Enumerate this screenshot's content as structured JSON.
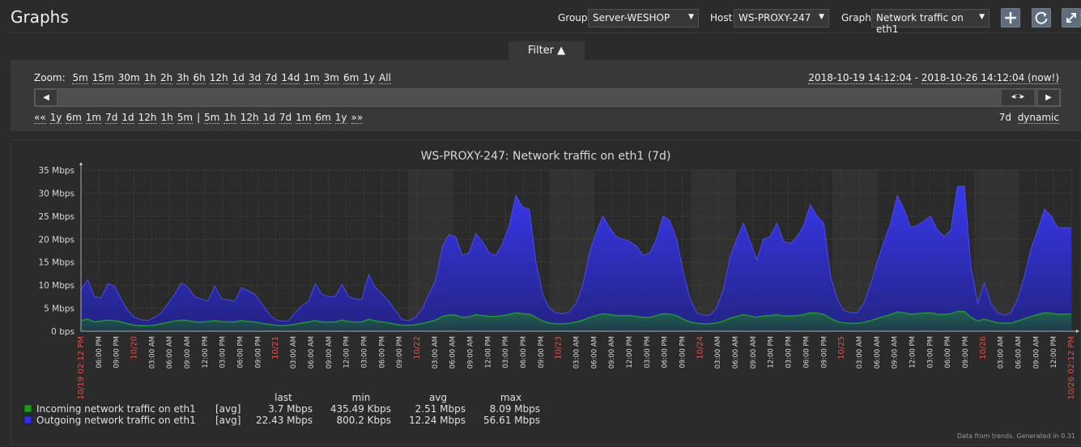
{
  "header": {
    "title": "Graphs",
    "group_label": "Group",
    "group_value": "Server-WESHOP",
    "host_label": "Host",
    "host_value": "WS-PROXY-247",
    "graph_label": "Graph",
    "graph_value": "Network traffic on eth1",
    "icons": [
      "plus-icon",
      "refresh-icon",
      "fullscreen-icon"
    ]
  },
  "filter": {
    "tab_label": "Filter ▲",
    "zoom_label": "Zoom:",
    "zoom_options": [
      "5m",
      "15m",
      "30m",
      "1h",
      "2h",
      "3h",
      "6h",
      "12h",
      "1d",
      "3d",
      "7d",
      "14d",
      "1m",
      "3m",
      "6m",
      "1y",
      "All"
    ],
    "range_from": "2018-10-19 14:12:04",
    "range_sep": " - ",
    "range_to": "2018-10-26 14:12:04 (now!)",
    "nav_back_all": "««",
    "nav_back": [
      "1y",
      "6m",
      "1m",
      "7d",
      "1d",
      "12h",
      "1h",
      "5m"
    ],
    "nav_sep": "|",
    "nav_fwd": [
      "5m",
      "1h",
      "12h",
      "1d",
      "7d",
      "1m",
      "6m",
      "1y"
    ],
    "nav_fwd_all": "»»",
    "period": "7d",
    "mode": "dynamic"
  },
  "graph": {
    "footer_note": "Data from trends. Generated in 0.31",
    "legend_headers": [
      "last",
      "min",
      "avg",
      "max"
    ],
    "legend": [
      {
        "name": "Incoming network traffic on eth1",
        "func": "[avg]",
        "last": "3.7 Mbps",
        "min": "435.49 Kbps",
        "avg": "2.51 Mbps",
        "max": "8.09 Mbps",
        "color": "#1a9f1a"
      },
      {
        "name": "Outgoing network traffic on eth1",
        "func": "[avg]",
        "last": "22.43 Mbps",
        "min": "800.2 Kbps",
        "avg": "12.24 Mbps",
        "max": "56.61 Mbps",
        "color": "#2f2fe8"
      }
    ]
  },
  "chart_data": {
    "type": "area",
    "title": "WS-PROXY-247: Network traffic on eth1 (7d)",
    "ylim": [
      0,
      35
    ],
    "y_ticks": [
      0,
      5,
      10,
      15,
      20,
      25,
      30,
      35
    ],
    "y_tick_labels": [
      "0 bps",
      "5 Mbps",
      "10 Mbps",
      "15 Mbps",
      "20 Mbps",
      "25 Mbps",
      "30 Mbps",
      "35 Mbps"
    ],
    "x_tick_labels": [
      "10/19 02:12 PM",
      "06:00 PM",
      "09:00 PM",
      "10/20",
      "03:00 AM",
      "06:00 AM",
      "09:00 AM",
      "12:00 PM",
      "03:00 PM",
      "06:00 PM",
      "09:00 PM",
      "10/21",
      "03:00 AM",
      "06:00 AM",
      "09:00 AM",
      "12:00 PM",
      "03:00 PM",
      "06:00 PM",
      "09:00 PM",
      "10/22",
      "03:00 AM",
      "06:00 AM",
      "09:00 AM",
      "12:00 PM",
      "03:00 PM",
      "06:00 PM",
      "09:00 PM",
      "10/23",
      "03:00 AM",
      "06:00 AM",
      "09:00 AM",
      "12:00 PM",
      "03:00 PM",
      "06:00 PM",
      "09:00 PM",
      "10/24",
      "03:00 AM",
      "06:00 AM",
      "09:00 AM",
      "12:00 PM",
      "03:00 PM",
      "06:00 PM",
      "09:00 PM",
      "10/25",
      "03:00 AM",
      "06:00 AM",
      "09:00 AM",
      "12:00 PM",
      "03:00 PM",
      "06:00 PM",
      "09:00 PM",
      "10/26",
      "03:00 AM",
      "06:00 AM",
      "09:00 AM",
      "12:00 PM",
      "10/26 02:12 PM"
    ],
    "highlight_labels": [
      "10/19 02:12 PM",
      "10/20",
      "10/21",
      "10/22",
      "10/23",
      "10/24",
      "10/25",
      "10/26",
      "10/26 02:12 PM"
    ],
    "series": [
      {
        "name": "Outgoing network traffic on eth1",
        "color": "#2f2fe8",
        "values": [
          9,
          11.2,
          7.5,
          7.2,
          10.3,
          9.8,
          7,
          4.5,
          3,
          2.5,
          2.3,
          3,
          4,
          6,
          8,
          10.5,
          9.5,
          7.5,
          7,
          6.5,
          9.8,
          7,
          6.8,
          6.5,
          9.5,
          8.8,
          8,
          6,
          4,
          2.5,
          2.2,
          2.3,
          4,
          5.5,
          6.5,
          10.3,
          8,
          7.5,
          7.5,
          10.2,
          7.5,
          7,
          7,
          12.3,
          9.5,
          8,
          6.5,
          4.5,
          2.5,
          2.3,
          3,
          4.8,
          8,
          11,
          18.3,
          21,
          20.5,
          16.5,
          17,
          21.2,
          19.5,
          17,
          16.5,
          19,
          23,
          29.5,
          27,
          26.5,
          15,
          8,
          5,
          4,
          3.8,
          4.2,
          6,
          10,
          17,
          21.5,
          25,
          22.5,
          20.5,
          20,
          19.5,
          18.5,
          16.5,
          17,
          20,
          25,
          24,
          20,
          13,
          7,
          4,
          3.5,
          3.5,
          5,
          9,
          16,
          20,
          23.5,
          19.5,
          15.5,
          20,
          20.5,
          23.5,
          19.5,
          19,
          20.5,
          23,
          27.5,
          25,
          23.5,
          12,
          7,
          4.5,
          4,
          4,
          6,
          10,
          15,
          19.5,
          23.5,
          29.5,
          26.5,
          22.5,
          23,
          24,
          25,
          22,
          20.5,
          22,
          31.5,
          31.5,
          14,
          6,
          10.5,
          6,
          4,
          3.5,
          4,
          7,
          12,
          18,
          22,
          26.5,
          25,
          22.5,
          22.5,
          22.5
        ]
      },
      {
        "name": "Incoming network traffic on eth1",
        "color": "#1a9f1a",
        "values": [
          2.3,
          2.6,
          2,
          2.2,
          2.4,
          2.3,
          2,
          1.6,
          1.3,
          1.2,
          1.2,
          1.3,
          1.6,
          1.9,
          2.2,
          2.4,
          2.3,
          2,
          2,
          2.1,
          2.3,
          2.1,
          2,
          2,
          2.3,
          2.1,
          2,
          1.7,
          1.5,
          1.3,
          1.2,
          1.3,
          1.5,
          1.8,
          2,
          2.3,
          2,
          2,
          2,
          2.4,
          2.1,
          2,
          2,
          2.6,
          2.2,
          2,
          1.8,
          1.5,
          1.3,
          1.3,
          1.4,
          1.7,
          2,
          2.4,
          3.2,
          3.5,
          3.5,
          3,
          3.1,
          3.6,
          3.4,
          3.2,
          3.2,
          3.4,
          3.6,
          4,
          3.8,
          3.7,
          3,
          2.2,
          1.8,
          1.6,
          1.6,
          1.7,
          2,
          2.4,
          3,
          3.4,
          3.8,
          3.6,
          3.4,
          3.4,
          3.4,
          3.2,
          3,
          3,
          3.4,
          3.8,
          3.7,
          3.4,
          2.6,
          2,
          1.7,
          1.6,
          1.6,
          1.8,
          2.2,
          2.8,
          3.2,
          3.6,
          3.3,
          3,
          3.3,
          3.4,
          3.6,
          3.3,
          3.3,
          3.4,
          3.6,
          4,
          3.9,
          3.7,
          2.8,
          2.1,
          1.8,
          1.7,
          1.7,
          1.9,
          2.3,
          2.8,
          3.2,
          3.6,
          4.2,
          4,
          3.7,
          3.8,
          3.9,
          4,
          3.7,
          3.6,
          3.8,
          4.3,
          4.3,
          3,
          2.2,
          2.6,
          2.2,
          1.8,
          1.7,
          1.8,
          2.2,
          2.7,
          3.2,
          3.6,
          4,
          3.9,
          3.7,
          3.7,
          3.7
        ]
      }
    ]
  }
}
